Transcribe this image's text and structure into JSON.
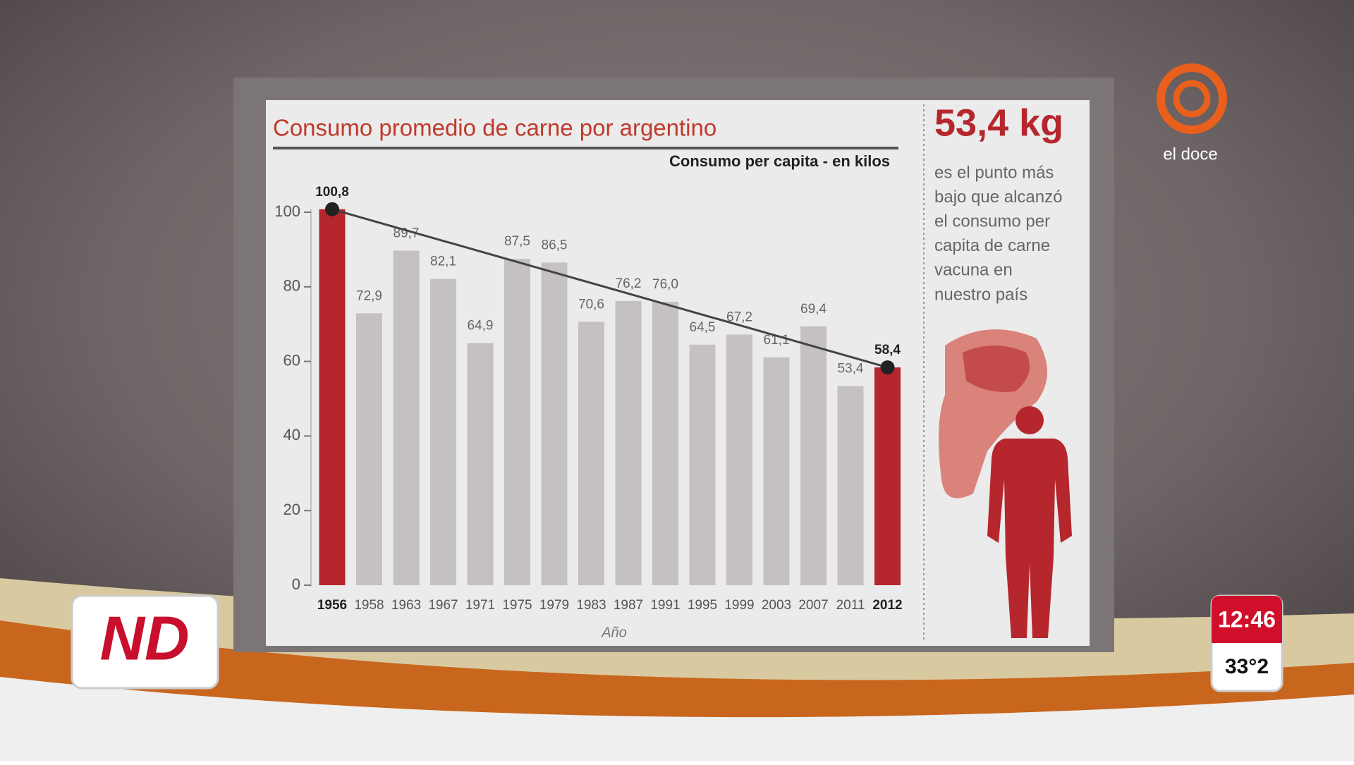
{
  "chart_data": {
    "type": "bar",
    "title": "Consumo promedio de carne por argentino",
    "subtitle": "Consumo per capita - en kilos",
    "x_label": "Año",
    "categories": [
      "1956",
      "1958",
      "1963",
      "1967",
      "1971",
      "1975",
      "1979",
      "1983",
      "1987",
      "1991",
      "1995",
      "1999",
      "2003",
      "2007",
      "2011",
      "2012"
    ],
    "values": [
      100.8,
      72.9,
      89.7,
      82.1,
      64.9,
      87.5,
      86.5,
      70.6,
      76.2,
      76.0,
      64.5,
      67.2,
      61.1,
      69.4,
      53.4,
      58.4
    ],
    "value_labels": [
      "100,8",
      "72,9",
      "89,7",
      "82,1",
      "64,9",
      "87,5",
      "86,5",
      "70,6",
      "76,2",
      "76,0",
      "64,5",
      "67,2",
      "61,1",
      "69,4",
      "53,4",
      "58,4"
    ],
    "colors": [
      "#b5272d",
      "#c4c0c4",
      "#c4c0c4",
      "#c4c0c4",
      "#c4c0c4",
      "#c4c0c4",
      "#c4c0c4",
      "#c4c0c4",
      "#c4c0c4",
      "#c4c0c4",
      "#c4c0c4",
      "#c4c0c4",
      "#c4c0c4",
      "#c4c0c4",
      "#c4c0c4",
      "#b5272d"
    ],
    "ylim": [
      0,
      100
    ],
    "yticks": [
      0,
      20,
      40,
      60,
      80,
      100
    ]
  },
  "side_panel": {
    "headline": "53,4 kg",
    "text": [
      "es el punto más",
      "bajo que alcanzó",
      "el consumo per",
      "capita de carne",
      "vacuna en",
      "nuestro país"
    ]
  },
  "overlay": {
    "channel": "el doce",
    "show": "ND",
    "time": "12:46",
    "temperature": "33°2"
  }
}
